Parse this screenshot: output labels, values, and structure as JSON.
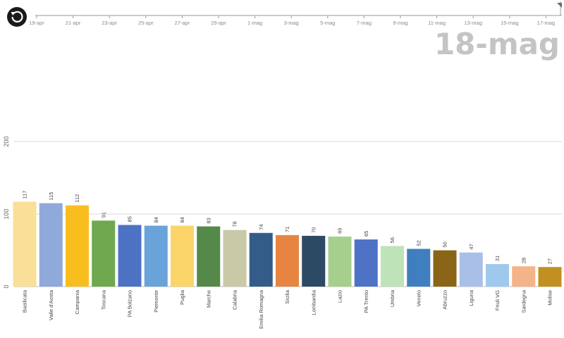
{
  "controls": {
    "replay_icon": "replay-icon"
  },
  "timeline": {
    "ticks": [
      "19-apr",
      "21-apr",
      "23-apr",
      "25-apr",
      "27-apr",
      "29-apr",
      "1-mag",
      "3-mag",
      "5-mag",
      "7-mag",
      "9-mag",
      "11-mag",
      "13-mag",
      "15-mag",
      "17-mag"
    ],
    "current_date": "18-mag"
  },
  "chart_data": {
    "type": "bar",
    "ylim": [
      0,
      200
    ],
    "y_ticks": [
      "0",
      "100",
      "200"
    ],
    "categories": [
      "Basilicata",
      "Valle d'Aosta",
      "Campania",
      "Toscana",
      "PA Bolzano",
      "Piemonte",
      "Puglia",
      "Marche",
      "Calabria",
      "Emilia Romagna",
      "Sicilia",
      "Lombardia",
      "Lazio",
      "PA Trento",
      "Umbria",
      "Veneto",
      "Abruzzo",
      "Liguria",
      "Friuli VG",
      "Sardegna",
      "Molise"
    ],
    "values": [
      117,
      115,
      112,
      91,
      85,
      84,
      84,
      83,
      78,
      74,
      71,
      70,
      69,
      65,
      56,
      52,
      50,
      47,
      31,
      28,
      27
    ],
    "value_labels": [
      "117",
      "115",
      "112",
      "91",
      "85",
      "84",
      "84",
      "83",
      "78",
      "74",
      "71",
      "70",
      "69",
      "65",
      "56",
      "52",
      "50",
      "47",
      "31",
      "28",
      "27"
    ],
    "colors": [
      "#f9df98",
      "#8fa9db",
      "#f8be1e",
      "#6fa84f",
      "#4d72c4",
      "#6aa3d9",
      "#fbd56a",
      "#55894a",
      "#c8c9a6",
      "#345c88",
      "#e88441",
      "#2c4a63",
      "#a6cf8e",
      "#4e72c6",
      "#bfe3b8",
      "#3f7fbf",
      "#8a6517",
      "#a9bfe8",
      "#9ec9ec",
      "#f4b389",
      "#c19020"
    ],
    "grid": true
  }
}
